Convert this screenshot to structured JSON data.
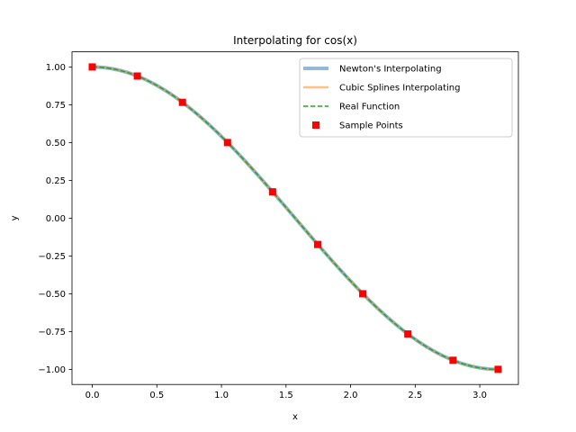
{
  "chart_data": {
    "type": "line",
    "title": "Interpolating for cos(x)",
    "xlabel": "x",
    "ylabel": "y",
    "xlim": [
      -0.157,
      3.299
    ],
    "ylim": [
      -1.1,
      1.1
    ],
    "x_ticks": [
      0.0,
      0.5,
      1.0,
      1.5,
      2.0,
      2.5,
      3.0
    ],
    "x_tick_labels": [
      "0.0",
      "0.5",
      "1.0",
      "1.5",
      "2.0",
      "2.5",
      "3.0"
    ],
    "y_ticks": [
      1.0,
      0.75,
      0.5,
      0.25,
      0.0,
      -0.25,
      -0.5,
      -0.75,
      -1.0
    ],
    "y_tick_labels": [
      "1.00",
      "0.75",
      "0.50",
      "0.25",
      "0.00",
      "−0.25",
      "−0.50",
      "−0.75",
      "−1.00"
    ],
    "grid": false,
    "legend_position": "top-right",
    "series": [
      {
        "name": "Newton's Interpolating",
        "style": "line",
        "color": "#1f77b4",
        "function": "cos",
        "x_range": [
          0,
          3.14159
        ]
      },
      {
        "name": "Cubic Splines Interpolating",
        "style": "line",
        "color": "#ff7f0e",
        "function": "cos",
        "x_range": [
          0,
          3.14159
        ]
      },
      {
        "name": "Real Function",
        "style": "dashed",
        "color": "#2ca02c",
        "function": "cos",
        "x_range": [
          0,
          3.14159
        ]
      },
      {
        "name": "Sample Points",
        "style": "marker",
        "color": "#ff0000",
        "x": [
          0.0,
          0.349,
          0.698,
          1.047,
          1.396,
          1.745,
          2.094,
          2.443,
          2.793,
          3.142
        ],
        "y": [
          1.0,
          0.94,
          0.766,
          0.5,
          0.174,
          -0.174,
          -0.5,
          -0.766,
          -0.94,
          -1.0
        ]
      }
    ]
  }
}
